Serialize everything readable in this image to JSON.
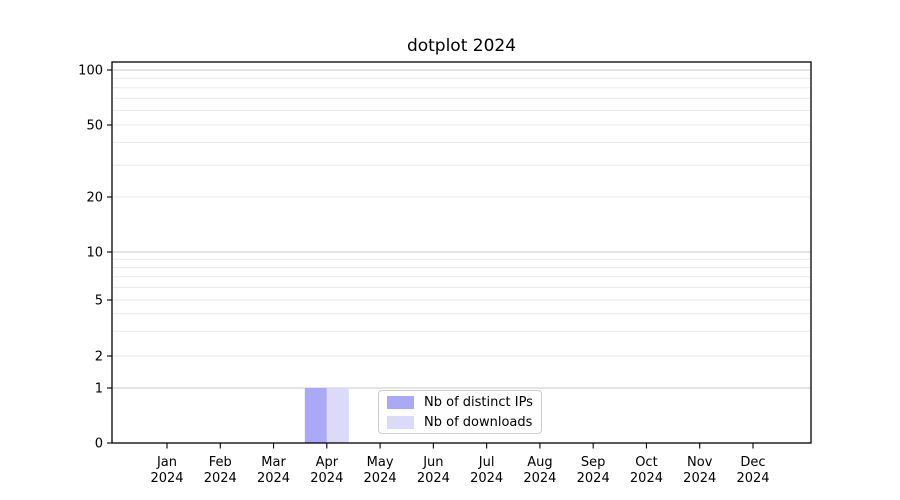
{
  "chart_data": {
    "type": "bar",
    "title": "dotplot 2024",
    "categories": [
      {
        "month": "Jan",
        "year": "2024"
      },
      {
        "month": "Feb",
        "year": "2024"
      },
      {
        "month": "Mar",
        "year": "2024"
      },
      {
        "month": "Apr",
        "year": "2024"
      },
      {
        "month": "May",
        "year": "2024"
      },
      {
        "month": "Jun",
        "year": "2024"
      },
      {
        "month": "Jul",
        "year": "2024"
      },
      {
        "month": "Aug",
        "year": "2024"
      },
      {
        "month": "Sep",
        "year": "2024"
      },
      {
        "month": "Oct",
        "year": "2024"
      },
      {
        "month": "Nov",
        "year": "2024"
      },
      {
        "month": "Dec",
        "year": "2024"
      }
    ],
    "series": [
      {
        "name": "Nb of distinct IPs",
        "color": "#a9a9f7",
        "values": [
          0,
          0,
          0,
          1,
          0,
          0,
          0,
          0,
          0,
          0,
          0,
          0
        ]
      },
      {
        "name": "Nb of downloads",
        "color": "#dbdbf9",
        "values": [
          0,
          0,
          0,
          1,
          0,
          0,
          0,
          0,
          0,
          0,
          0,
          0
        ]
      }
    ],
    "y_axis": {
      "scale": "symlog",
      "range": [
        0,
        100
      ],
      "tick_labels": [
        0,
        1,
        2,
        5,
        10,
        20,
        50,
        100
      ],
      "major_gridlines": [
        1,
        10,
        100
      ],
      "minor_gridlines": [
        2,
        3,
        4,
        5,
        6,
        7,
        8,
        9,
        20,
        30,
        40,
        50,
        60,
        70,
        80,
        90
      ]
    },
    "legend": {
      "position": "lower center"
    },
    "colors": {
      "axis": "#000000",
      "text": "#000000",
      "major_grid": "#c9c9c9",
      "minor_grid": "#eaeaea"
    }
  }
}
